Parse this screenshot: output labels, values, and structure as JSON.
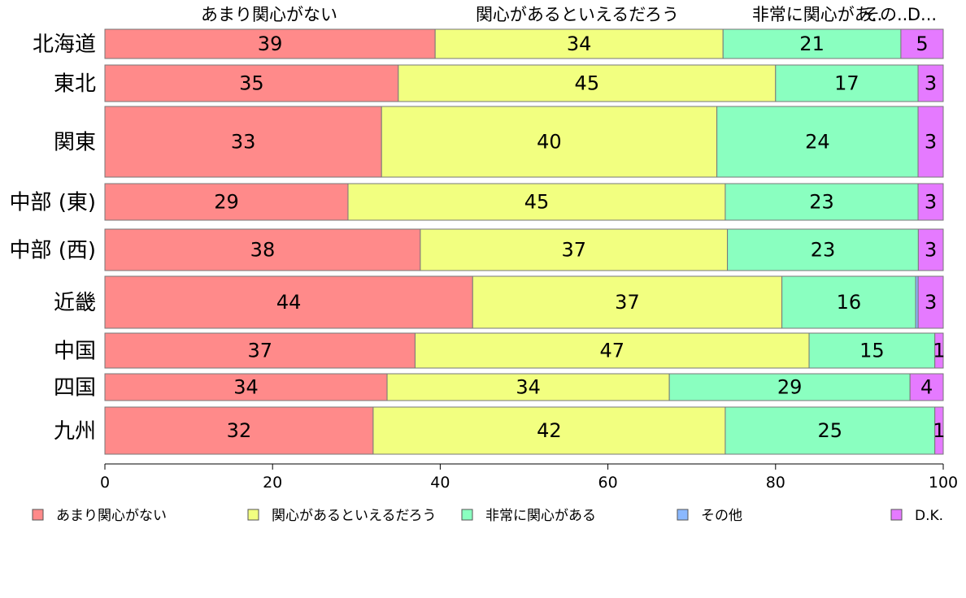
{
  "chart_data": {
    "type": "bar",
    "orientation": "horizontal",
    "stacked": true,
    "categories": [
      "北海道",
      "東北",
      "関東",
      "中部 (東)",
      "中部 (西)",
      "近畿",
      "中国",
      "四国",
      "九州"
    ],
    "series": [
      {
        "name": "あまり関心がない",
        "color": "#FF8A8A",
        "values": [
          39,
          35,
          33,
          29,
          38,
          44,
          37,
          34,
          32
        ],
        "labels": [
          "39",
          "35",
          "33",
          "29",
          "38",
          "44",
          "37",
          "34",
          "32"
        ]
      },
      {
        "name": "関心があるといえるだろう",
        "color": "#F2FF80",
        "values": [
          34,
          45,
          40,
          45,
          37,
          37,
          47,
          34,
          42
        ],
        "labels": [
          "34",
          "45",
          "40",
          "45",
          "37",
          "37",
          "47",
          "34",
          "42"
        ]
      },
      {
        "name": "非常に関心がある",
        "color": "#8AFFC0",
        "values": [
          21,
          17,
          24,
          23,
          23,
          16,
          15,
          29,
          25
        ],
        "labels": [
          "21",
          "17",
          "24",
          "23",
          "23",
          "16",
          "15",
          "29",
          "25"
        ]
      },
      {
        "name": "その他",
        "color": "#8AB8FF",
        "values": [
          0,
          0,
          0,
          0,
          0,
          0.3,
          0,
          0,
          0
        ],
        "labels": [
          "",
          "",
          "",
          "",
          "",
          "",
          "",
          "",
          ""
        ]
      },
      {
        "name": "D.K.",
        "color": "#E57AFF",
        "values": [
          5,
          3,
          3,
          3,
          3,
          3,
          1,
          4,
          1
        ],
        "labels": [
          "5",
          "3",
          "3",
          "3",
          "3",
          "3",
          "1",
          "4",
          "1"
        ]
      }
    ],
    "column_headers": [
      "あまり関心がない",
      "関心があるといえるだろう",
      "非常に関心があ..",
      "その...",
      "D..."
    ],
    "xlim": [
      0,
      100
    ],
    "xticks": [
      "0",
      "20",
      "40",
      "60",
      "80",
      "100"
    ],
    "grid": false,
    "legend_position": "bottom"
  }
}
